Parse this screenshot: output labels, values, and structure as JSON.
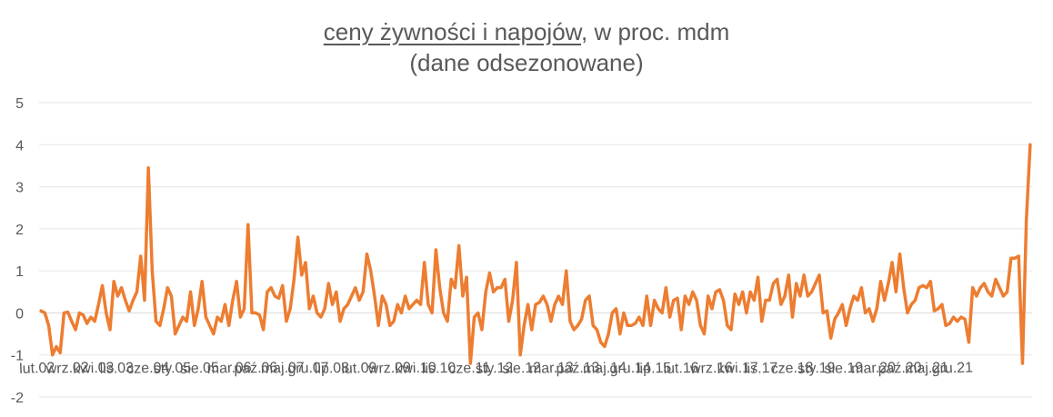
{
  "chart_data": {
    "type": "line",
    "title_underlined": "ceny  żywności i napojów",
    "title_rest": ", w proc. mdm",
    "subtitle": "(dane odsezonowane)",
    "xlabel": "",
    "ylabel": "",
    "ylim": [
      -2,
      5
    ],
    "yticks": [
      "5",
      "4",
      "3",
      "2",
      "1",
      "0",
      "-1",
      "-2"
    ],
    "ytick_values": [
      5,
      4,
      3,
      2,
      1,
      0,
      -1,
      -2
    ],
    "grid": true,
    "line_color": "#ED7D31",
    "x_start": "2002-01",
    "xtick_labels": [
      "lut.02",
      "wrz.02",
      "kwi.03",
      "lis.03",
      "cze.04",
      "sty.05",
      "sie.05",
      "mar.06",
      "paź.06",
      "maj.07",
      "gru.07",
      "lip.08",
      "lut.09",
      "wrz.09",
      "kwi.10",
      "lis.10",
      "cze.11",
      "sty.12",
      "sie.12",
      "mar.13",
      "paź.13",
      "maj.14",
      "gru.14",
      "lip.15",
      "lut.16",
      "wrz.16",
      "kwi.17",
      "lis.17",
      "cze.18",
      "sty.19",
      "sie.19",
      "mar.20",
      "paź.20",
      "maj.21",
      "gru.21"
    ],
    "series": [
      {
        "values": [
          0.05,
          0.0,
          -0.3,
          -1.0,
          -0.8,
          -0.95,
          0.0,
          0.02,
          -0.2,
          -0.4,
          0.0,
          -0.05,
          -0.25,
          -0.1,
          -0.2,
          0.2,
          0.65,
          0.0,
          -0.4,
          0.75,
          0.4,
          0.6,
          0.3,
          0.05,
          0.3,
          0.5,
          1.35,
          0.3,
          3.45,
          1.0,
          -0.2,
          -0.3,
          0.1,
          0.6,
          0.4,
          -0.5,
          -0.3,
          -0.1,
          -0.2,
          0.5,
          -0.3,
          0.1,
          0.75,
          -0.1,
          -0.3,
          -0.5,
          -0.1,
          -0.2,
          0.2,
          -0.3,
          0.3,
          0.75,
          -0.1,
          0.1,
          2.1,
          0.0,
          0.0,
          -0.05,
          -0.4,
          0.5,
          0.6,
          0.4,
          0.35,
          0.65,
          -0.2,
          0.1,
          0.8,
          1.8,
          0.9,
          1.2,
          0.1,
          0.4,
          0.0,
          -0.1,
          0.1,
          0.7,
          0.2,
          0.5,
          -0.2,
          0.1,
          0.2,
          0.4,
          0.6,
          0.3,
          0.5,
          1.4,
          1.0,
          0.4,
          -0.3,
          0.4,
          0.2,
          -0.3,
          -0.2,
          0.2,
          0.0,
          0.4,
          0.1,
          0.2,
          0.3,
          0.2,
          1.2,
          0.2,
          0.0,
          1.5,
          0.6,
          0.0,
          -0.2,
          0.8,
          0.6,
          1.6,
          0.4,
          0.85,
          -1.2,
          -0.1,
          0.0,
          -0.4,
          0.5,
          0.95,
          0.5,
          0.6,
          0.6,
          0.8,
          -0.2,
          0.3,
          1.2,
          -1.0,
          -0.3,
          0.2,
          -0.4,
          0.2,
          0.25,
          0.4,
          0.2,
          -0.2,
          0.2,
          0.4,
          0.2,
          1.0,
          -0.2,
          -0.4,
          -0.3,
          -0.15,
          0.3,
          0.4,
          -0.3,
          -0.4,
          -0.7,
          -0.8,
          -0.5,
          0.0,
          0.1,
          -0.5,
          0.0,
          -0.3,
          -0.3,
          -0.25,
          -0.1,
          -0.3,
          0.4,
          -0.3,
          0.3,
          0.1,
          0.0,
          0.6,
          -0.1,
          0.3,
          0.35,
          -0.4,
          0.4,
          0.2,
          0.5,
          0.3,
          -0.3,
          -0.5,
          0.4,
          0.1,
          0.5,
          0.55,
          0.3,
          -0.3,
          -0.4,
          0.45,
          0.2,
          0.5,
          0.0,
          0.5,
          0.3,
          0.85,
          -0.2,
          0.3,
          0.3,
          0.7,
          0.8,
          0.2,
          0.4,
          0.9,
          -0.1,
          0.7,
          0.4,
          0.9,
          0.4,
          0.5,
          0.7,
          0.9,
          0.0,
          0.05,
          -0.6,
          -0.15,
          0.0,
          0.2,
          -0.3,
          0.1,
          0.4,
          0.3,
          0.6,
          0.0,
          0.1,
          -0.2,
          0.1,
          0.75,
          0.3,
          0.7,
          1.2,
          0.5,
          1.4,
          0.6,
          0.0,
          0.2,
          0.3,
          0.6,
          0.65,
          0.6,
          0.75,
          0.05,
          0.1,
          0.2,
          -0.3,
          -0.25,
          -0.1,
          -0.2,
          -0.1,
          -0.15,
          -0.7,
          0.6,
          0.4,
          0.6,
          0.7,
          0.5,
          0.4,
          0.8,
          0.6,
          0.4,
          0.5,
          1.3,
          1.3,
          1.35,
          -1.2,
          2.2,
          4.0
        ]
      }
    ]
  }
}
